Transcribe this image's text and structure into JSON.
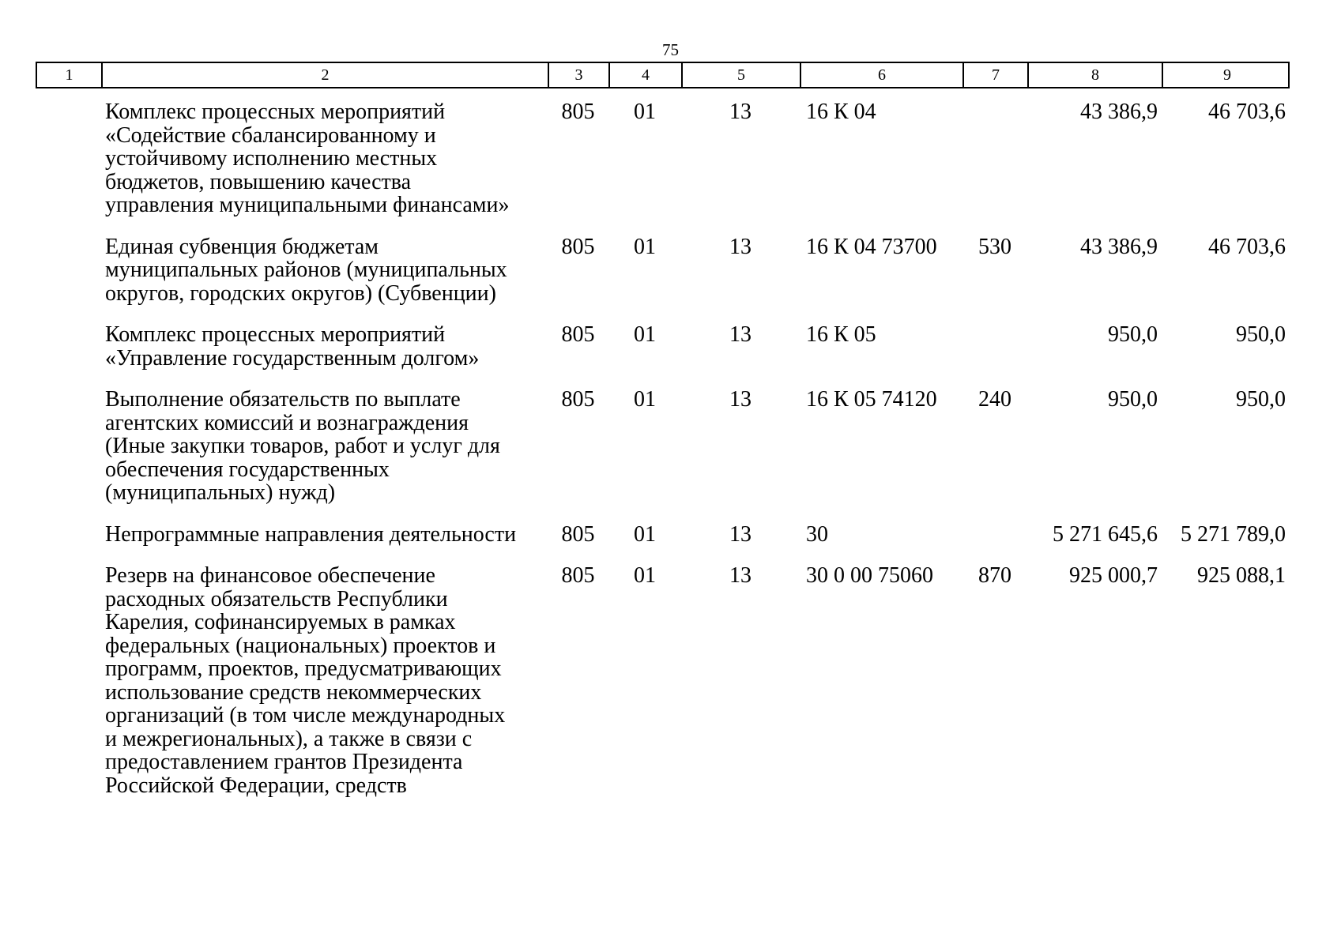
{
  "page": {
    "number": "75"
  },
  "table": {
    "column_headers": [
      "1",
      "2",
      "3",
      "4",
      "5",
      "6",
      "7",
      "8",
      "9"
    ],
    "rows": [
      {
        "cells": [
          "",
          "Комплекс процессных мероприятий\n«Содействие сбалансированному и\nустойчивому исполнению местных\nбюджетов, повышению качества\nуправления муниципальными финансами»",
          "805",
          "01",
          "13",
          "16 К 04",
          "",
          "43 386,9",
          "46 703,6"
        ]
      },
      {
        "cells": [
          "",
          "Единая субвенция бюджетам\nмуниципальных районов (муниципальных\nокругов, городских округов) (Субвенции)",
          "805",
          "01",
          "13",
          "16 К 04 73700",
          "530",
          "43 386,9",
          "46 703,6"
        ]
      },
      {
        "cells": [
          "",
          "Комплекс процессных мероприятий\n«Управление государственным долгом»",
          "805",
          "01",
          "13",
          "16 К 05",
          "",
          "950,0",
          "950,0"
        ]
      },
      {
        "cells": [
          "",
          "Выполнение обязательств по выплате\nагентских комиссий и вознаграждения\n(Иные закупки товаров, работ и услуг для\nобеспечения государственных\n(муниципальных) нужд)",
          "805",
          "01",
          "13",
          "16 К 05 74120",
          "240",
          "950,0",
          "950,0"
        ]
      },
      {
        "cells": [
          "",
          "Непрограммные направления деятельности",
          "805",
          "01",
          "13",
          "30",
          "",
          "5 271 645,6",
          "5 271 789,0"
        ]
      },
      {
        "cells": [
          "",
          "Резерв на финансовое обеспечение\nрасходных обязательств Республики\nКарелия, софинансируемых в рамках\nфедеральных (национальных) проектов и\nпрограмм, проектов, предусматривающих\nиспользование средств некоммерческих\nорганизаций (в том числе международных\nи межрегиональных), а также в связи с\nпредоставлением грантов Президента\nРоссийской Федерации, средств",
          "805",
          "01",
          "13",
          "30 0 00 75060",
          "870",
          "925 000,7",
          "925 088,1"
        ]
      }
    ]
  }
}
